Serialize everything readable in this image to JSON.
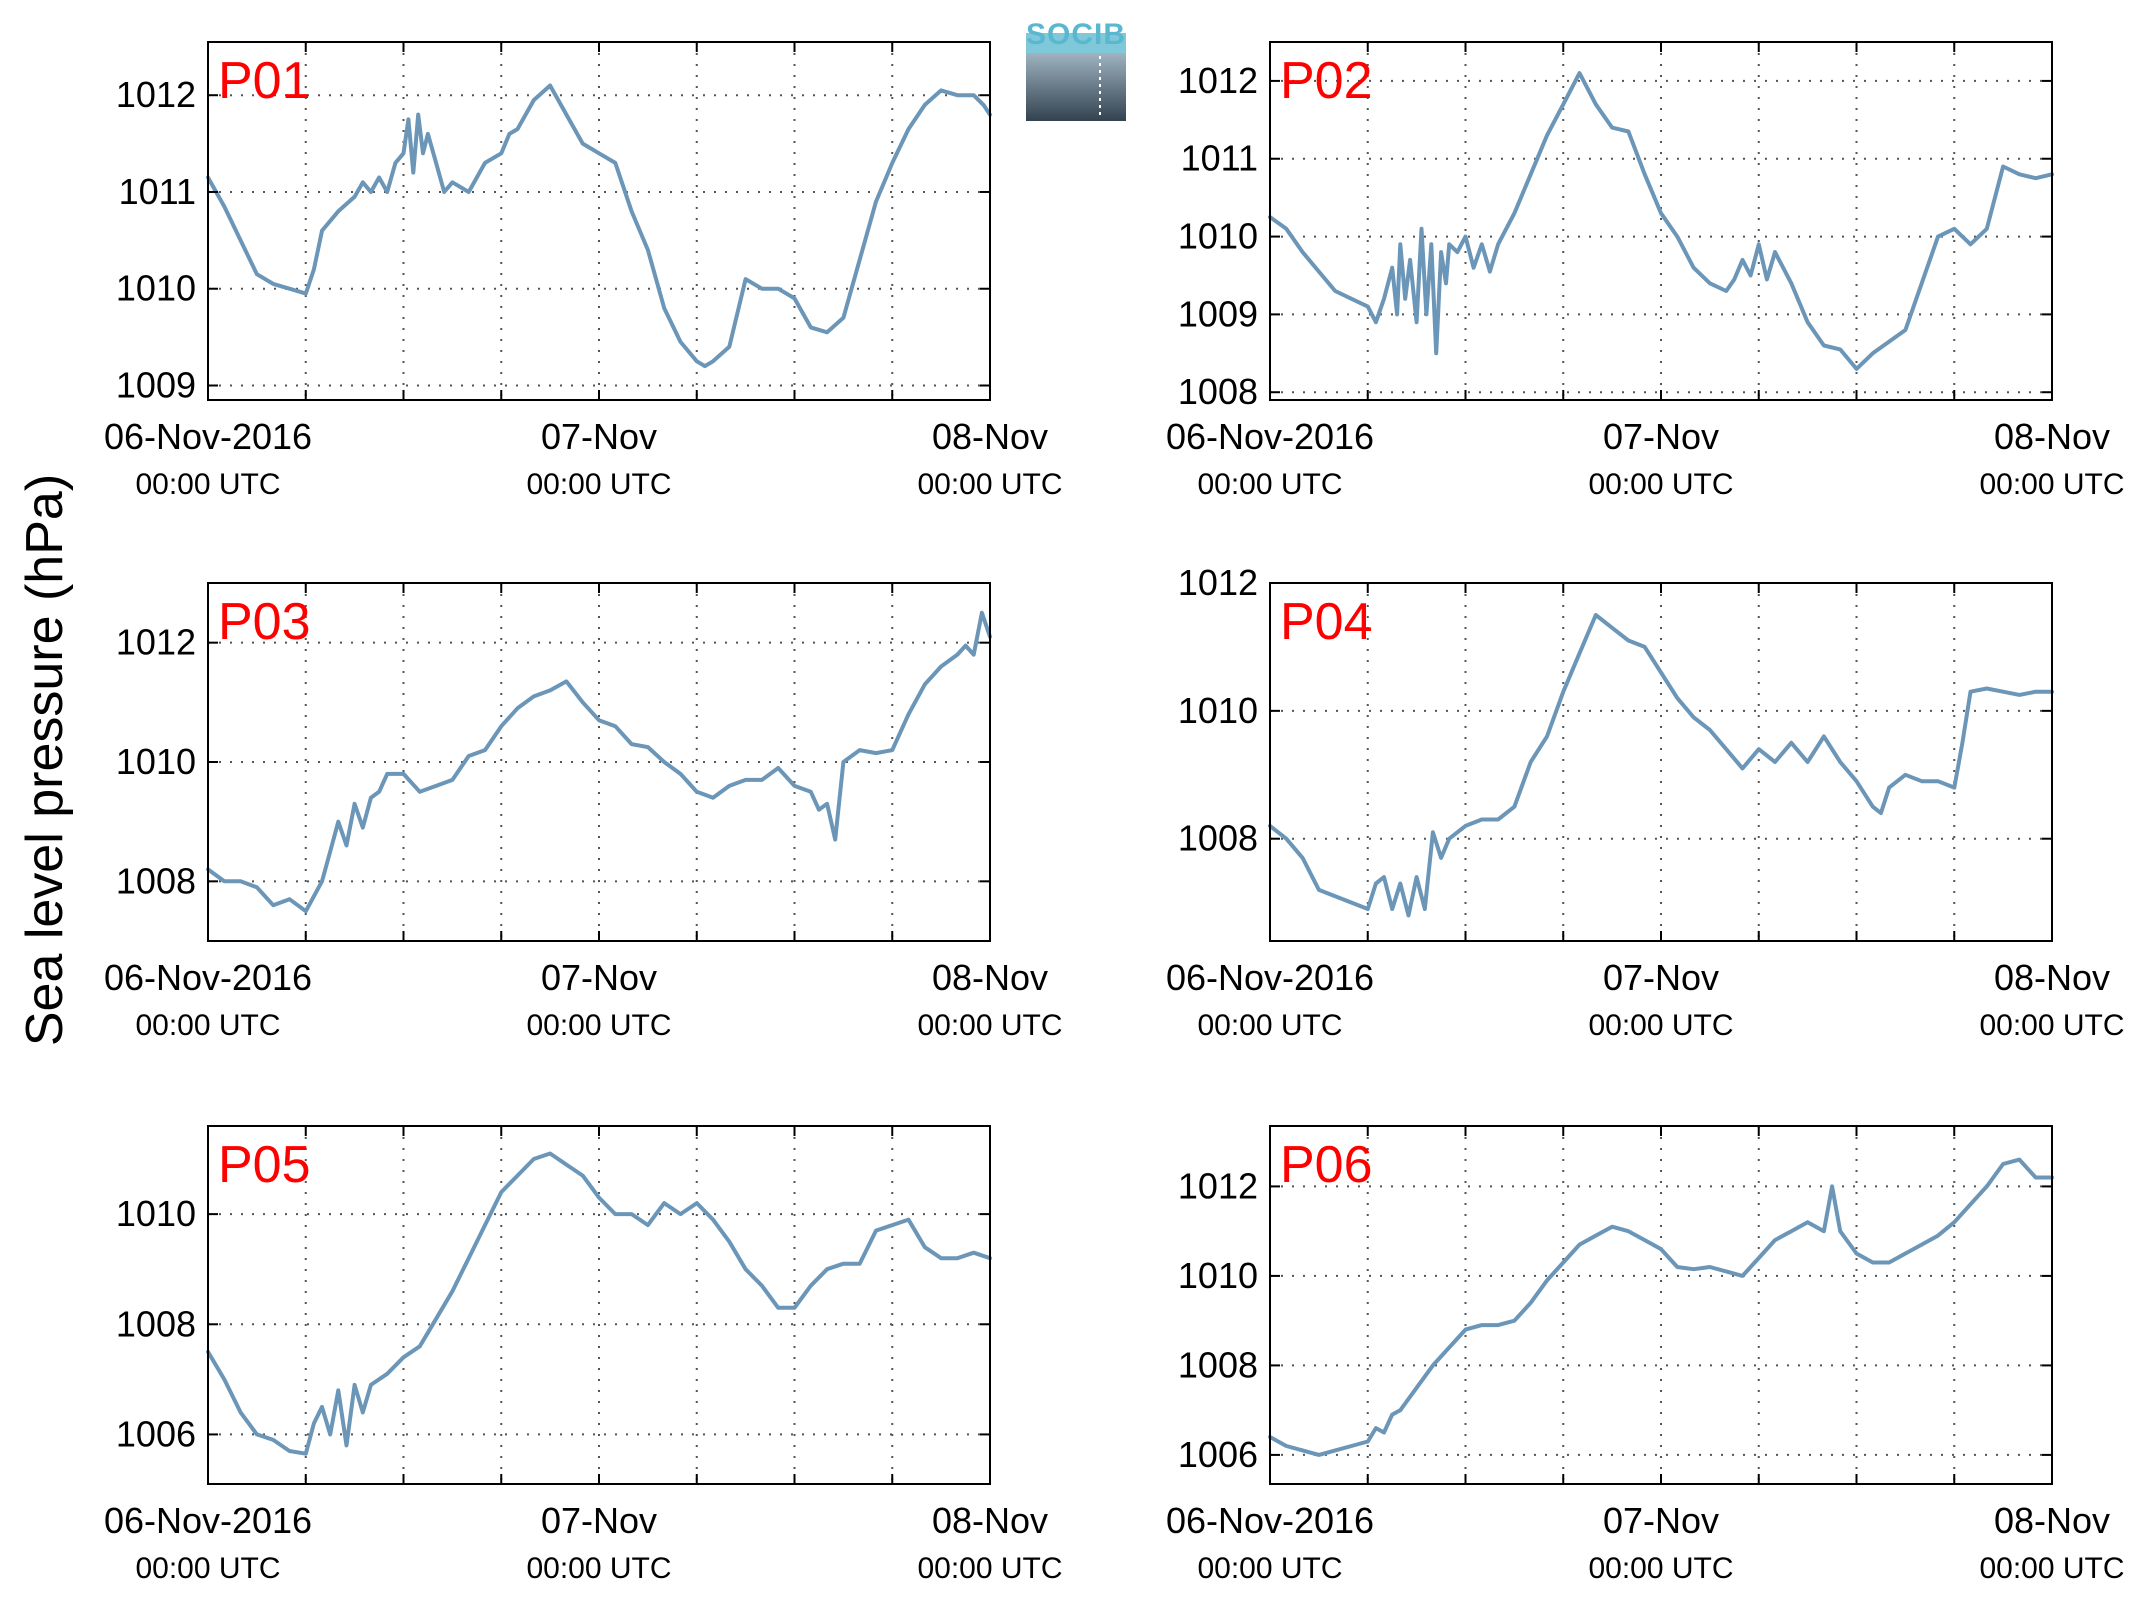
{
  "figure": {
    "ylabel": "Sea level pressure (hPa)",
    "logo_text": "SOCIB",
    "line_color": "#6b96b8",
    "label_color": "#ff0000"
  },
  "chart_data": [
    {
      "type": "line",
      "label": "P01",
      "xticks": [
        {
          "line1": "06-Nov-2016",
          "line2": "00:00 UTC"
        },
        {
          "line1": "07-Nov",
          "line2": "00:00 UTC"
        },
        {
          "line1": "08-Nov",
          "line2": "00:00 UTC"
        }
      ],
      "xlim": [
        0,
        48
      ],
      "ylim": [
        1008.85,
        1012.55
      ],
      "yticks": [
        1009,
        1010,
        1011,
        1012
      ],
      "grid": true,
      "series": [
        {
          "x": [
            0,
            1,
            2,
            3,
            4,
            5,
            6,
            6.5,
            7,
            8,
            9,
            9.5,
            10,
            10.5,
            11,
            11.5,
            12,
            12.3,
            12.6,
            12.9,
            13.2,
            13.5,
            14,
            14.5,
            15,
            16,
            17,
            18,
            18.5,
            19,
            20,
            21,
            22,
            23,
            24,
            25,
            26,
            27,
            28,
            29,
            30,
            30.5,
            31,
            32,
            33,
            34,
            35,
            36,
            37,
            38,
            39,
            40,
            41,
            42,
            43,
            44,
            45,
            46,
            47,
            47.6,
            48
          ],
          "y": [
            1011.15,
            1010.85,
            1010.5,
            1010.15,
            1010.05,
            1010.0,
            1009.95,
            1010.2,
            1010.6,
            1010.8,
            1010.95,
            1011.1,
            1011.0,
            1011.15,
            1011.0,
            1011.3,
            1011.4,
            1011.75,
            1011.2,
            1011.8,
            1011.4,
            1011.6,
            1011.3,
            1011.0,
            1011.1,
            1011.0,
            1011.3,
            1011.4,
            1011.6,
            1011.65,
            1011.95,
            1012.1,
            1011.8,
            1011.5,
            1011.4,
            1011.3,
            1010.8,
            1010.4,
            1009.8,
            1009.45,
            1009.25,
            1009.2,
            1009.25,
            1009.4,
            1010.1,
            1010.0,
            1010.0,
            1009.9,
            1009.6,
            1009.55,
            1009.7,
            1010.3,
            1010.9,
            1011.3,
            1011.65,
            1011.9,
            1012.05,
            1012.0,
            1012.0,
            1011.9,
            1011.8
          ]
        }
      ]
    },
    {
      "type": "line",
      "label": "P02",
      "xticks": [
        {
          "line1": "06-Nov-2016",
          "line2": "00:00 UTC"
        },
        {
          "line1": "07-Nov",
          "line2": "00:00 UTC"
        },
        {
          "line1": "08-Nov",
          "line2": "00:00 UTC"
        }
      ],
      "xlim": [
        0,
        48
      ],
      "ylim": [
        1007.9,
        1012.5
      ],
      "yticks": [
        1008,
        1009,
        1010,
        1011,
        1012
      ],
      "grid": true,
      "series": [
        {
          "x": [
            0,
            1,
            2,
            3,
            4,
            5,
            6,
            6.5,
            7,
            7.5,
            7.8,
            8,
            8.3,
            8.6,
            9,
            9.3,
            9.6,
            9.9,
            10.2,
            10.5,
            10.8,
            11,
            11.5,
            12,
            12.5,
            13,
            13.5,
            14,
            15,
            16,
            17,
            18,
            19,
            20,
            21,
            22,
            23,
            24,
            25,
            26,
            27,
            28,
            28.5,
            29,
            29.5,
            30,
            30.5,
            31,
            32,
            33,
            34,
            35,
            36,
            37,
            38,
            39,
            40,
            41,
            42,
            43,
            44,
            45,
            46,
            47,
            48
          ],
          "y": [
            1010.25,
            1010.1,
            1009.8,
            1009.55,
            1009.3,
            1009.2,
            1009.1,
            1008.9,
            1009.2,
            1009.6,
            1009.0,
            1009.9,
            1009.2,
            1009.7,
            1008.9,
            1010.1,
            1009.0,
            1009.9,
            1008.5,
            1009.8,
            1009.4,
            1009.9,
            1009.8,
            1010.0,
            1009.6,
            1009.9,
            1009.55,
            1009.9,
            1010.3,
            1010.8,
            1011.3,
            1011.7,
            1012.1,
            1011.7,
            1011.4,
            1011.35,
            1010.8,
            1010.3,
            1010.0,
            1009.6,
            1009.4,
            1009.3,
            1009.45,
            1009.7,
            1009.5,
            1009.9,
            1009.45,
            1009.8,
            1009.4,
            1008.9,
            1008.6,
            1008.55,
            1008.3,
            1008.5,
            1008.65,
            1008.8,
            1009.4,
            1010.0,
            1010.1,
            1009.9,
            1010.1,
            1010.9,
            1010.8,
            1010.75,
            1010.8
          ]
        }
      ]
    },
    {
      "type": "line",
      "label": "P03",
      "xticks": [
        {
          "line1": "06-Nov-2016",
          "line2": "00:00 UTC"
        },
        {
          "line1": "07-Nov",
          "line2": "00:00 UTC"
        },
        {
          "line1": "08-Nov",
          "line2": "00:00 UTC"
        }
      ],
      "xlim": [
        0,
        48
      ],
      "ylim": [
        1007.0,
        1013.0
      ],
      "yticks": [
        1008,
        1010,
        1012
      ],
      "grid": true,
      "series": [
        {
          "x": [
            0,
            1,
            2,
            3,
            4,
            5,
            6,
            7,
            7.5,
            8,
            8.5,
            9,
            9.5,
            10,
            10.5,
            11,
            12,
            13,
            14,
            15,
            16,
            17,
            18,
            19,
            20,
            21,
            22,
            23,
            24,
            25,
            26,
            27,
            28,
            29,
            30,
            31,
            32,
            33,
            34,
            35,
            36,
            37,
            37.5,
            38,
            38.5,
            39,
            40,
            41,
            42,
            43,
            44,
            45,
            46,
            46.5,
            47,
            47.5,
            48
          ],
          "y": [
            1008.2,
            1008.0,
            1008.0,
            1007.9,
            1007.6,
            1007.7,
            1007.5,
            1008.0,
            1008.5,
            1009.0,
            1008.6,
            1009.3,
            1008.9,
            1009.4,
            1009.5,
            1009.8,
            1009.8,
            1009.5,
            1009.6,
            1009.7,
            1010.1,
            1010.2,
            1010.6,
            1010.9,
            1011.1,
            1011.2,
            1011.35,
            1011.0,
            1010.7,
            1010.6,
            1010.3,
            1010.25,
            1010.0,
            1009.8,
            1009.5,
            1009.4,
            1009.6,
            1009.7,
            1009.7,
            1009.9,
            1009.6,
            1009.5,
            1009.2,
            1009.3,
            1008.7,
            1010.0,
            1010.2,
            1010.15,
            1010.2,
            1010.8,
            1011.3,
            1011.6,
            1011.8,
            1011.95,
            1011.8,
            1012.5,
            1012.1
          ]
        }
      ]
    },
    {
      "type": "line",
      "label": "P04",
      "xticks": [
        {
          "line1": "06-Nov-2016",
          "line2": "00:00 UTC"
        },
        {
          "line1": "07-Nov",
          "line2": "00:00 UTC"
        },
        {
          "line1": "08-Nov",
          "line2": "00:00 UTC"
        }
      ],
      "xlim": [
        0,
        48
      ],
      "ylim": [
        1006.4,
        1012.0
      ],
      "yticks": [
        1008,
        1010,
        1012
      ],
      "grid": true,
      "series": [
        {
          "x": [
            0,
            1,
            2,
            3,
            4,
            5,
            6,
            6.5,
            7,
            7.5,
            8,
            8.5,
            9,
            9.5,
            10,
            10.5,
            11,
            12,
            13,
            14,
            15,
            16,
            17,
            18,
            19,
            20,
            21,
            22,
            23,
            24,
            25,
            26,
            27,
            28,
            29,
            30,
            31,
            32,
            33,
            34,
            35,
            36,
            37,
            37.5,
            38,
            39,
            40,
            41,
            42,
            42.5,
            43,
            44,
            45,
            46,
            47,
            48
          ],
          "y": [
            1008.2,
            1008.0,
            1007.7,
            1007.2,
            1007.1,
            1007.0,
            1006.9,
            1007.3,
            1007.4,
            1006.9,
            1007.3,
            1006.8,
            1007.4,
            1006.9,
            1008.1,
            1007.7,
            1008.0,
            1008.2,
            1008.3,
            1008.3,
            1008.5,
            1009.2,
            1009.6,
            1010.3,
            1010.9,
            1011.5,
            1011.3,
            1011.1,
            1011.0,
            1010.6,
            1010.2,
            1009.9,
            1009.7,
            1009.4,
            1009.1,
            1009.4,
            1009.2,
            1009.5,
            1009.2,
            1009.6,
            1009.2,
            1008.9,
            1008.5,
            1008.4,
            1008.8,
            1009.0,
            1008.9,
            1008.9,
            1008.8,
            1009.5,
            1010.3,
            1010.35,
            1010.3,
            1010.25,
            1010.3,
            1010.3
          ]
        }
      ]
    },
    {
      "type": "line",
      "label": "P05",
      "xticks": [
        {
          "line1": "06-Nov-2016",
          "line2": "00:00 UTC"
        },
        {
          "line1": "07-Nov",
          "line2": "00:00 UTC"
        },
        {
          "line1": "08-Nov",
          "line2": "00:00 UTC"
        }
      ],
      "xlim": [
        0,
        48
      ],
      "ylim": [
        1005.1,
        1011.6
      ],
      "yticks": [
        1006,
        1008,
        1010
      ],
      "grid": true,
      "series": [
        {
          "x": [
            0,
            1,
            2,
            3,
            4,
            5,
            6,
            6.5,
            7,
            7.5,
            8,
            8.5,
            9,
            9.5,
            10,
            11,
            12,
            13,
            14,
            15,
            16,
            17,
            18,
            19,
            20,
            21,
            22,
            23,
            24,
            25,
            26,
            27,
            28,
            29,
            30,
            31,
            32,
            33,
            34,
            35,
            36,
            37,
            38,
            39,
            40,
            41,
            42,
            43,
            44,
            45,
            46,
            47,
            48
          ],
          "y": [
            1007.5,
            1007.0,
            1006.4,
            1006.0,
            1005.9,
            1005.7,
            1005.65,
            1006.2,
            1006.5,
            1006.0,
            1006.8,
            1005.8,
            1006.9,
            1006.4,
            1006.9,
            1007.1,
            1007.4,
            1007.6,
            1008.1,
            1008.6,
            1009.2,
            1009.8,
            1010.4,
            1010.7,
            1011.0,
            1011.1,
            1010.9,
            1010.7,
            1010.3,
            1010.0,
            1010.0,
            1009.8,
            1010.2,
            1010.0,
            1010.2,
            1009.9,
            1009.5,
            1009.0,
            1008.7,
            1008.3,
            1008.3,
            1008.7,
            1009.0,
            1009.1,
            1009.1,
            1009.7,
            1009.8,
            1009.9,
            1009.4,
            1009.2,
            1009.2,
            1009.3,
            1009.2
          ]
        }
      ]
    },
    {
      "type": "line",
      "label": "P06",
      "xticks": [
        {
          "line1": "06-Nov-2016",
          "line2": "00:00 UTC"
        },
        {
          "line1": "07-Nov",
          "line2": "00:00 UTC"
        },
        {
          "line1": "08-Nov",
          "line2": "00:00 UTC"
        }
      ],
      "xlim": [
        0,
        48
      ],
      "ylim": [
        1005.35,
        1013.35
      ],
      "yticks": [
        1006,
        1008,
        1010,
        1012
      ],
      "grid": true,
      "series": [
        {
          "x": [
            0,
            1,
            2,
            3,
            4,
            5,
            6,
            6.5,
            7,
            7.5,
            8,
            9,
            10,
            11,
            12,
            13,
            14,
            15,
            16,
            17,
            18,
            19,
            20,
            21,
            22,
            23,
            24,
            25,
            26,
            27,
            28,
            29,
            30,
            31,
            32,
            33,
            34,
            34.5,
            35,
            36,
            37,
            38,
            39,
            40,
            41,
            42,
            43,
            44,
            45,
            46,
            47,
            48
          ],
          "y": [
            1006.4,
            1006.2,
            1006.1,
            1006.0,
            1006.1,
            1006.2,
            1006.3,
            1006.6,
            1006.5,
            1006.9,
            1007.0,
            1007.5,
            1008.0,
            1008.4,
            1008.8,
            1008.9,
            1008.9,
            1009.0,
            1009.4,
            1009.9,
            1010.3,
            1010.7,
            1010.9,
            1011.1,
            1011.0,
            1010.8,
            1010.6,
            1010.2,
            1010.15,
            1010.2,
            1010.1,
            1010.0,
            1010.4,
            1010.8,
            1011.0,
            1011.2,
            1011.0,
            1012.0,
            1011.0,
            1010.5,
            1010.3,
            1010.3,
            1010.5,
            1010.7,
            1010.9,
            1011.2,
            1011.6,
            1012.0,
            1012.5,
            1012.6,
            1012.2,
            1012.2
          ]
        }
      ]
    }
  ]
}
